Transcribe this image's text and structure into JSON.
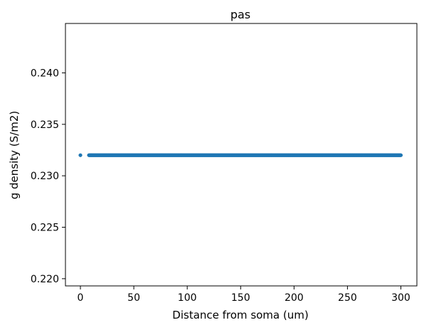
{
  "chart_data": {
    "type": "scatter",
    "title": "pas",
    "xlabel": "Distance from soma (um)",
    "ylabel": "g density (S/m2)",
    "xlim": [
      -14,
      315
    ],
    "ylim": [
      0.2193,
      0.2448
    ],
    "xticks": [
      0,
      50,
      100,
      150,
      200,
      250,
      300
    ],
    "yticks": [
      0.22,
      0.225,
      0.23,
      0.235,
      0.24
    ],
    "xtick_labels": [
      "0",
      "50",
      "100",
      "150",
      "200",
      "250",
      "300"
    ],
    "ytick_labels": [
      "0.220",
      "0.225",
      "0.230",
      "0.235",
      "0.240"
    ],
    "grid": false,
    "marker_color": "#1f77b4",
    "series": [
      {
        "x_points": [
          0
        ],
        "x_range": {
          "from": 8,
          "to": 300,
          "step": 0.5
        },
        "y": 0.232
      }
    ]
  }
}
